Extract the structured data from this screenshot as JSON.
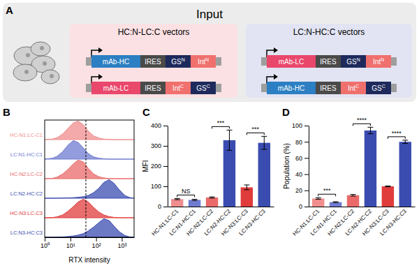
{
  "diagram": {
    "label": "A",
    "title": "Input",
    "groups": [
      {
        "title": "HC:N-LC:C vectors",
        "color": "#fbe1e3",
        "constructs": [
          [
            {
              "text": "mAb-HC",
              "color": "#2c7fc3"
            },
            {
              "text": "IRES",
              "color": "#4a4a4a"
            },
            {
              "text": "GS",
              "sup": "N",
              "color": "#1e2a5c"
            },
            {
              "text": "Int",
              "sup": "N",
              "color": "#f0706e"
            }
          ],
          [
            {
              "text": "mAb-LC",
              "color": "#e9476c"
            },
            {
              "text": "IRES",
              "color": "#4a4a4a"
            },
            {
              "text": "Int",
              "sup": "C",
              "color": "#f0706e"
            },
            {
              "text": "GS",
              "sup": "C",
              "color": "#1e2a5c"
            }
          ]
        ]
      },
      {
        "title": "LC:N-HC:C vectors",
        "color": "#e2e4f3",
        "constructs": [
          [
            {
              "text": "mAb-LC",
              "color": "#e9476c"
            },
            {
              "text": "IRES",
              "color": "#4a4a4a"
            },
            {
              "text": "GS",
              "sup": "N",
              "color": "#1e2a5c"
            },
            {
              "text": "Int",
              "sup": "N",
              "color": "#f0706e"
            }
          ],
          [
            {
              "text": "mAb-HC",
              "color": "#2c7fc3"
            },
            {
              "text": "IRES",
              "color": "#4a4a4a"
            },
            {
              "text": "Int",
              "sup": "C",
              "color": "#f0706e"
            },
            {
              "text": "GS",
              "sup": "C",
              "color": "#1e2a5c"
            }
          ]
        ]
      }
    ]
  },
  "chart_data": [
    {
      "type": "area",
      "title": "B",
      "x_label": "RTX intensity",
      "log": "x",
      "tick_labels": "x",
      "x": [
        1,
        2,
        3,
        5,
        8,
        13,
        20,
        32,
        50,
        80,
        130,
        200,
        320,
        500,
        800,
        1300,
        2000,
        3000
      ],
      "xlim": [
        1,
        3000
      ],
      "xticks": [
        {
          "value": 1,
          "label": "10⁰"
        },
        {
          "value": 10,
          "label": "10¹"
        },
        {
          "value": 100,
          "label": "10²"
        },
        {
          "value": 1000,
          "label": "10³"
        }
      ],
      "ylim": [
        0,
        1
      ],
      "threshold": 40,
      "series": [
        {
          "name": "HC-N1:LC-C1",
          "color": "#f08e8e",
          "values": [
            0,
            0.03,
            0.1,
            0.3,
            0.6,
            0.9,
            1.0,
            0.8,
            0.45,
            0.2,
            0.08,
            0.03,
            0.01,
            0,
            0,
            0,
            0,
            0
          ]
        },
        {
          "name": "LC:N1-HC:C1",
          "color": "#6f7bd0",
          "values": [
            0,
            0.05,
            0.15,
            0.4,
            0.75,
            1.0,
            0.9,
            0.6,
            0.3,
            0.12,
            0.05,
            0.02,
            0,
            0,
            0,
            0,
            0,
            0
          ]
        },
        {
          "name": "HC-N2:LC-C2",
          "color": "#ea6a6a",
          "values": [
            0,
            0.02,
            0.08,
            0.25,
            0.5,
            0.8,
            1.0,
            0.9,
            0.55,
            0.25,
            0.1,
            0.04,
            0.01,
            0,
            0,
            0,
            0,
            0
          ]
        },
        {
          "name": "LC:N2-HC:C2",
          "color": "#3b4cb0",
          "values": [
            0,
            0,
            0,
            0.01,
            0.02,
            0.03,
            0.05,
            0.08,
            0.15,
            0.3,
            0.55,
            0.85,
            1.0,
            0.8,
            0.45,
            0.15,
            0.04,
            0
          ]
        },
        {
          "name": "HC-N3:LC-C3",
          "color": "#e03c3c",
          "values": [
            0,
            0.01,
            0.05,
            0.15,
            0.35,
            0.6,
            0.85,
            1.0,
            0.85,
            0.55,
            0.3,
            0.15,
            0.06,
            0.02,
            0,
            0,
            0,
            0
          ]
        },
        {
          "name": "LC:N3-HC:C3",
          "color": "#3b4cb0",
          "values": [
            0,
            0,
            0.01,
            0.02,
            0.04,
            0.07,
            0.12,
            0.2,
            0.35,
            0.55,
            0.8,
            1.0,
            0.9,
            0.6,
            0.3,
            0.1,
            0.02,
            0
          ]
        }
      ]
    },
    {
      "type": "bar",
      "title": "C",
      "y_label": "MFI",
      "categories": [
        "HC-N1:LC-C1",
        "LC:N1-HC:C1",
        "HC-N2:LC-C2",
        "LC:N2-HC:C2",
        "HC-N3:LC-C3",
        "LC:N3-HC:C3"
      ],
      "values": [
        37,
        33,
        45,
        328,
        95,
        315
      ],
      "errors": [
        3,
        3,
        3,
        50,
        12,
        32
      ],
      "colors": [
        "#f08e8e",
        "#6f7bd0",
        "#ea6a6a",
        "#3b4cb0",
        "#e03c3c",
        "#3b4cb0"
      ],
      "ylim": [
        0,
        400
      ],
      "yticks": [
        0,
        100,
        200,
        300,
        400
      ],
      "annotations": [
        {
          "text": "NS",
          "categories": [
            0,
            1
          ]
        },
        {
          "text": "***",
          "categories": [
            2,
            3
          ]
        },
        {
          "text": "***",
          "categories": [
            4,
            5
          ]
        }
      ]
    },
    {
      "type": "bar",
      "title": "D",
      "y_label": "Population (%)",
      "categories": [
        "HC-N1:LC-C1",
        "LC:N1-HC:C1",
        "HC-N2:LC-C2",
        "LC:N2-HC:C2",
        "HC-N3:LC-C3",
        "LC:N3-HC:C3"
      ],
      "values": [
        10,
        5.5,
        14,
        94,
        25,
        80
      ],
      "errors": [
        1,
        0.5,
        1,
        4,
        0.5,
        2
      ],
      "colors": [
        "#f08e8e",
        "#6f7bd0",
        "#ea6a6a",
        "#3b4cb0",
        "#e03c3c",
        "#3b4cb0"
      ],
      "ylim": [
        0,
        100
      ],
      "yticks": [
        0,
        20,
        40,
        60,
        80,
        100
      ],
      "annotations": [
        {
          "text": "***",
          "categories": [
            0,
            1
          ]
        },
        {
          "text": "****",
          "categories": [
            2,
            3
          ]
        },
        {
          "text": "****",
          "categories": [
            4,
            5
          ]
        }
      ]
    }
  ]
}
